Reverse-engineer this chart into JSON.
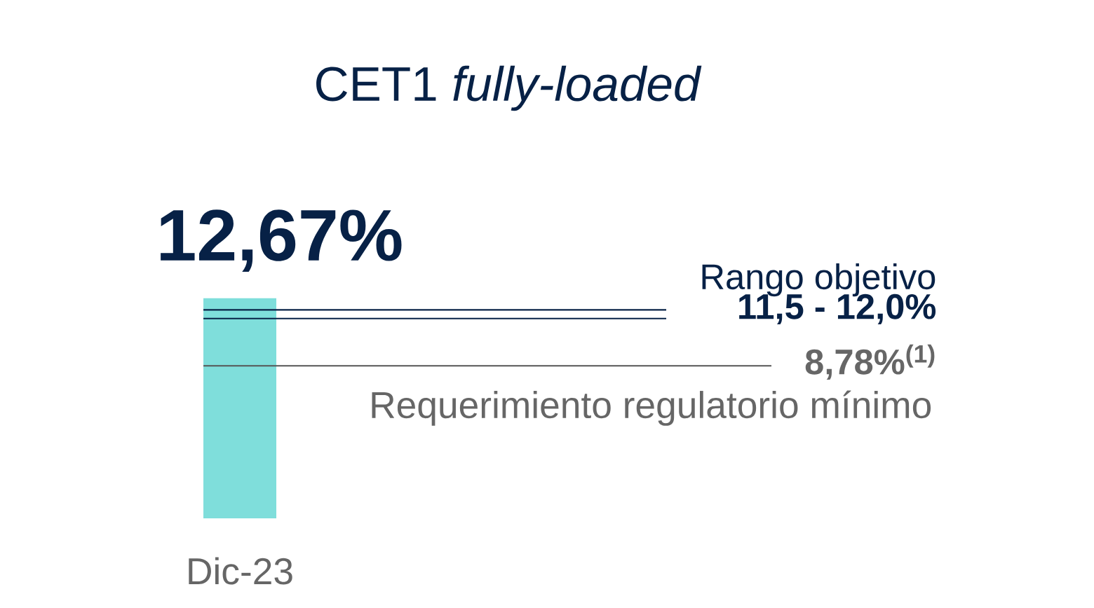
{
  "chart_data": {
    "type": "bar",
    "title": "CET1 *fully-loaded*",
    "categories": [
      "Dic-23"
    ],
    "values": [
      12.67
    ],
    "color": "#7fdedb",
    "value_labels": [
      "12,67%"
    ],
    "ref_lines": [
      {
        "axis": "y",
        "value": 12.0,
        "label": "Rango objetivo",
        "color": "#072146"
      },
      {
        "axis": "y",
        "value": 11.5,
        "label": "11,5 - 12,0%",
        "color": "#072146"
      },
      {
        "axis": "y",
        "value": 8.78,
        "label": "8,78%$^{(1)}$",
        "color": "#555555"
      }
    ],
    "annotations": [
      "Requerimiento regulatorio mínimo"
    ]
  }
}
